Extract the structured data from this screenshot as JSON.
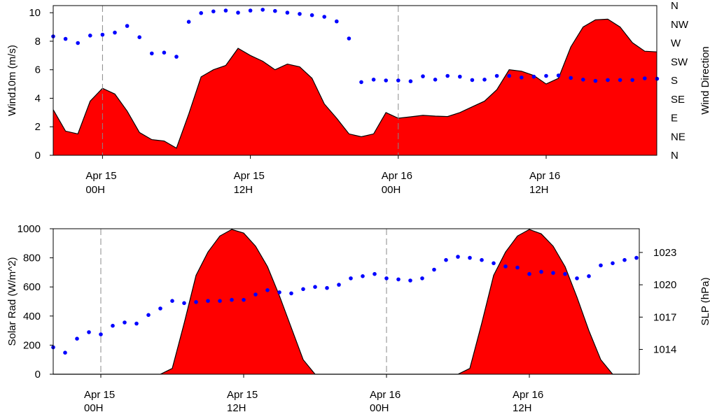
{
  "chart_data": [
    {
      "type": "area",
      "ylabel": "Wind10m (m/s)",
      "y2label": "Wind Direction",
      "ylim": [
        0,
        10.5
      ],
      "yticks": [
        0,
        2,
        4,
        6,
        8,
        10
      ],
      "y2ticks": [
        "N",
        "NE",
        "E",
        "SE",
        "S",
        "SW",
        "W",
        "NW",
        "N"
      ],
      "x_range_hours": [
        -4,
        45
      ],
      "x_ticks": [
        {
          "hour": 0,
          "date": "Apr 15",
          "time": "00H"
        },
        {
          "hour": 12,
          "date": "Apr 15",
          "time": "12H"
        },
        {
          "hour": 24,
          "date": "Apr 16",
          "time": "00H"
        },
        {
          "hour": 36,
          "date": "Apr 16",
          "time": "12H"
        }
      ],
      "day_lines_hours": [
        0,
        24
      ],
      "series": [
        {
          "kind": "area",
          "color": "#ff0000",
          "x": [
            -4,
            -3,
            -2,
            -1,
            0,
            1,
            2,
            3,
            4,
            5,
            6,
            7,
            8,
            9,
            10,
            11,
            12,
            13,
            14,
            15,
            16,
            17,
            18,
            19,
            20,
            21,
            22,
            23,
            24,
            25,
            26,
            27,
            28,
            29,
            30,
            31,
            32,
            33,
            34,
            35,
            36,
            37,
            38,
            39,
            40,
            41,
            42,
            43,
            44,
            45
          ],
          "values": [
            3.2,
            1.7,
            1.5,
            3.8,
            4.7,
            4.3,
            3.1,
            1.6,
            1.1,
            1.0,
            0.5,
            2.9,
            5.5,
            6.0,
            6.3,
            7.5,
            7.0,
            6.6,
            6.0,
            6.4,
            6.2,
            5.4,
            3.6,
            2.6,
            1.5,
            1.3,
            1.5,
            3.0,
            2.6,
            2.7,
            2.8,
            2.75,
            2.72,
            3.0,
            3.4,
            3.8,
            4.6,
            6.0,
            5.9,
            5.6,
            5.0,
            5.4,
            7.6,
            9.0,
            9.5,
            9.55,
            9.0,
            7.9,
            7.3,
            7.25
          ]
        },
        {
          "kind": "scatter",
          "axis": "right",
          "color": "#0000ff",
          "x": [
            -4,
            -3,
            -2,
            -1,
            0,
            1,
            2,
            3,
            4,
            5,
            6,
            7,
            8,
            9,
            10,
            11,
            12,
            13,
            14,
            15,
            16,
            17,
            18,
            19,
            20,
            21,
            22,
            23,
            24,
            25,
            26,
            27,
            28,
            29,
            30,
            31,
            32,
            33,
            34,
            35,
            36,
            37,
            38,
            39,
            40,
            41,
            42,
            43,
            44,
            45
          ],
          "values_deg": [
            286,
            280,
            270,
            288,
            290,
            295,
            311,
            284,
            245,
            247,
            237,
            321,
            342,
            346,
            348,
            343,
            348,
            350,
            347,
            343,
            340,
            337,
            333,
            322,
            281,
            176,
            182,
            180,
            180,
            178,
            190,
            182,
            191,
            189,
            181,
            182,
            191,
            191,
            187,
            189,
            191,
            192,
            186,
            182,
            179,
            181,
            181,
            181,
            185,
            184
          ]
        }
      ]
    },
    {
      "type": "area",
      "ylabel": "Solar Rad (W/m^2)",
      "y2label": "SLP (hPa)",
      "ylim": [
        0,
        1000
      ],
      "yticks": [
        0,
        200,
        400,
        600,
        800,
        1000
      ],
      "y2lim": [
        1011.7,
        1025.2
      ],
      "y2ticks": [
        1014,
        1017,
        1020,
        1023
      ],
      "x_range_hours": [
        -4,
        45
      ],
      "x_ticks": [
        {
          "hour": 0,
          "date": "Apr 15",
          "time": "00H"
        },
        {
          "hour": 12,
          "date": "Apr 15",
          "time": "12H"
        },
        {
          "hour": 24,
          "date": "Apr 16",
          "time": "00H"
        },
        {
          "hour": 36,
          "date": "Apr 16",
          "time": "12H"
        }
      ],
      "day_lines_hours": [
        0,
        24
      ],
      "series": [
        {
          "kind": "area",
          "color": "#ff0000",
          "x": [
            -4,
            -3,
            -2,
            -1,
            0,
            1,
            2,
            3,
            4,
            5,
            6,
            7,
            8,
            9,
            10,
            11,
            12,
            13,
            14,
            15,
            16,
            17,
            18,
            19,
            20,
            21,
            22,
            23,
            24,
            25,
            26,
            27,
            28,
            29,
            30,
            31,
            32,
            33,
            34,
            35,
            36,
            37,
            38,
            39,
            40,
            41,
            42,
            43,
            44,
            45
          ],
          "values": [
            0,
            0,
            0,
            0,
            0,
            0,
            0,
            0,
            0,
            0,
            40,
            350,
            680,
            840,
            950,
            995,
            970,
            880,
            740,
            540,
            320,
            100,
            0,
            0,
            0,
            0,
            0,
            0,
            0,
            0,
            0,
            0,
            0,
            0,
            0,
            40,
            350,
            680,
            840,
            950,
            995,
            965,
            880,
            740,
            530,
            300,
            100,
            0,
            0,
            0
          ]
        },
        {
          "kind": "scatter",
          "axis": "right",
          "color": "#0000ff",
          "x": [
            -4,
            -3,
            -2,
            -1,
            0,
            1,
            2,
            3,
            4,
            5,
            6,
            7,
            8,
            9,
            10,
            11,
            12,
            13,
            14,
            15,
            16,
            17,
            18,
            19,
            20,
            21,
            22,
            23,
            24,
            25,
            26,
            27,
            28,
            29,
            30,
            31,
            32,
            33,
            34,
            35,
            36,
            37,
            38,
            39,
            40,
            41,
            42,
            43,
            44,
            45
          ],
          "values": [
            1014.2,
            1013.7,
            1015.0,
            1015.6,
            1015.4,
            1016.2,
            1016.5,
            1016.4,
            1017.2,
            1017.8,
            1018.5,
            1018.3,
            1018.4,
            1018.5,
            1018.5,
            1018.6,
            1018.6,
            1019.1,
            1019.5,
            1019.3,
            1019.2,
            1019.6,
            1019.8,
            1019.7,
            1020.0,
            1020.6,
            1020.8,
            1021.0,
            1020.6,
            1020.5,
            1020.4,
            1020.6,
            1021.4,
            1022.3,
            1022.6,
            1022.5,
            1022.3,
            1022.0,
            1021.7,
            1021.6,
            1021.0,
            1021.2,
            1021.1,
            1021.0,
            1020.6,
            1020.8,
            1021.8,
            1022.0,
            1022.3,
            1022.5
          ]
        }
      ]
    }
  ]
}
